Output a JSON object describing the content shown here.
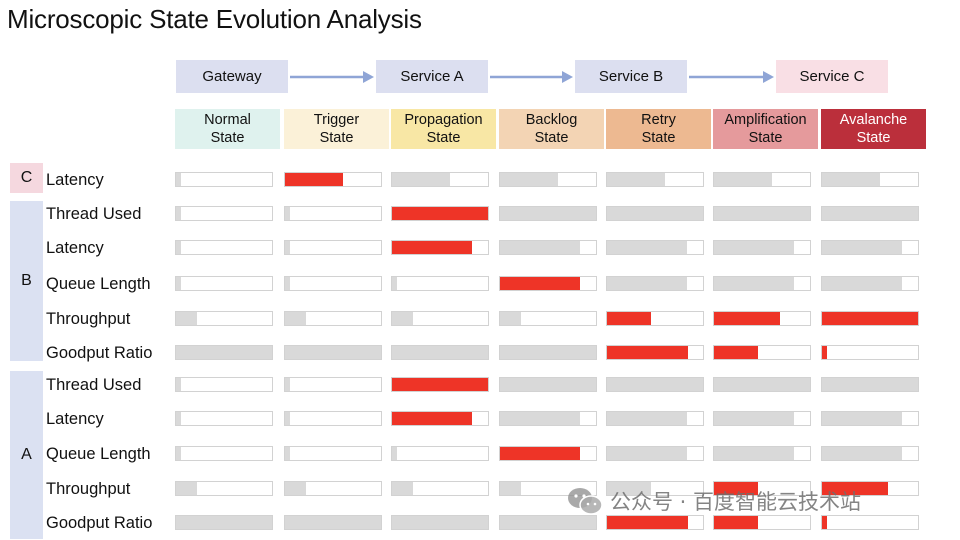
{
  "title": "Microscopic State Evolution Analysis",
  "services": [
    {
      "label": "Gateway",
      "color": "#dcdff0"
    },
    {
      "label": "Service A",
      "color": "#dcdff0"
    },
    {
      "label": "Service  B",
      "color": "#dcdff0"
    },
    {
      "label": "Service  C",
      "color": "#f9dfe5"
    }
  ],
  "arrow_color": "#8fa5d6",
  "states": [
    {
      "line1": "Normal",
      "line2": "State",
      "color": "#dff2ee",
      "text_color": "#111111"
    },
    {
      "line1": "Trigger",
      "line2": "State",
      "color": "#fbf1d8",
      "text_color": "#111111"
    },
    {
      "line1": "Propagation",
      "line2": "State",
      "color": "#f8e7a5",
      "text_color": "#111111"
    },
    {
      "line1": "Backlog",
      "line2": "State",
      "color": "#f3d4b4",
      "text_color": "#111111"
    },
    {
      "line1": "Retry",
      "line2": "State",
      "color": "#edb991",
      "text_color": "#111111"
    },
    {
      "line1": "Amplification",
      "line2": "State",
      "color": "#e59a9c",
      "text_color": "#111111"
    },
    {
      "line1": "Avalanche",
      "line2": "State",
      "color": "#bb2f3b",
      "text_color": "#ffffff"
    }
  ],
  "groups": [
    {
      "label": "C",
      "color": "#f5d8df"
    },
    {
      "label": "B",
      "color": "#dbe1f2"
    },
    {
      "label": "A",
      "color": "#dbe1f2"
    }
  ],
  "highlight_color": "#ee3427",
  "normal_color": "#d9d9d9",
  "rows": [
    {
      "group": 0,
      "metric": "Latency",
      "levels": [
        0.05,
        0.6,
        0.6,
        0.6,
        0.6,
        0.6,
        0.6
      ],
      "highlight": [
        false,
        true,
        false,
        false,
        false,
        false,
        false
      ]
    },
    {
      "group": 1,
      "metric": "Thread Used",
      "levels": [
        0.05,
        0.05,
        1.0,
        1.0,
        1.0,
        1.0,
        1.0
      ],
      "highlight": [
        false,
        false,
        true,
        false,
        false,
        false,
        false
      ]
    },
    {
      "group": 1,
      "metric": "Latency",
      "levels": [
        0.05,
        0.05,
        0.83,
        0.83,
        0.83,
        0.83,
        0.83
      ],
      "highlight": [
        false,
        false,
        true,
        false,
        false,
        false,
        false
      ]
    },
    {
      "group": 1,
      "metric": "Queue Length",
      "levels": [
        0.05,
        0.05,
        0.05,
        0.83,
        0.83,
        0.83,
        0.83
      ],
      "highlight": [
        false,
        false,
        false,
        true,
        false,
        false,
        false
      ]
    },
    {
      "group": 1,
      "metric": "Throughput",
      "levels": [
        0.22,
        0.22,
        0.22,
        0.22,
        0.46,
        0.69,
        1.0
      ],
      "highlight": [
        false,
        false,
        false,
        false,
        true,
        true,
        true
      ]
    },
    {
      "group": 1,
      "metric": "Goodput Ratio",
      "levels": [
        1.0,
        1.0,
        1.0,
        1.0,
        0.84,
        0.46,
        0.05
      ],
      "highlight": [
        false,
        false,
        false,
        false,
        true,
        true,
        true
      ]
    },
    {
      "group": 2,
      "metric": "Thread Used",
      "levels": [
        0.05,
        0.05,
        1.0,
        1.0,
        1.0,
        1.0,
        1.0
      ],
      "highlight": [
        false,
        false,
        true,
        false,
        false,
        false,
        false
      ]
    },
    {
      "group": 2,
      "metric": "Latency",
      "levels": [
        0.05,
        0.05,
        0.83,
        0.83,
        0.83,
        0.83,
        0.83
      ],
      "highlight": [
        false,
        false,
        true,
        false,
        false,
        false,
        false
      ]
    },
    {
      "group": 2,
      "metric": "Queue Length",
      "levels": [
        0.05,
        0.05,
        0.05,
        0.83,
        0.83,
        0.83,
        0.83
      ],
      "highlight": [
        false,
        false,
        false,
        true,
        false,
        false,
        false
      ]
    },
    {
      "group": 2,
      "metric": "Throughput",
      "levels": [
        0.22,
        0.22,
        0.22,
        0.22,
        0.46,
        0.46,
        0.69
      ],
      "highlight": [
        false,
        false,
        false,
        false,
        false,
        true,
        true
      ]
    },
    {
      "group": 2,
      "metric": "Goodput Ratio",
      "levels": [
        1.0,
        1.0,
        1.0,
        1.0,
        0.84,
        0.46,
        0.05
      ],
      "highlight": [
        false,
        false,
        false,
        false,
        true,
        true,
        true
      ]
    }
  ],
  "watermark": {
    "text": "公众号 · 百度智能云技术站",
    "icon": "wechat-logo"
  }
}
